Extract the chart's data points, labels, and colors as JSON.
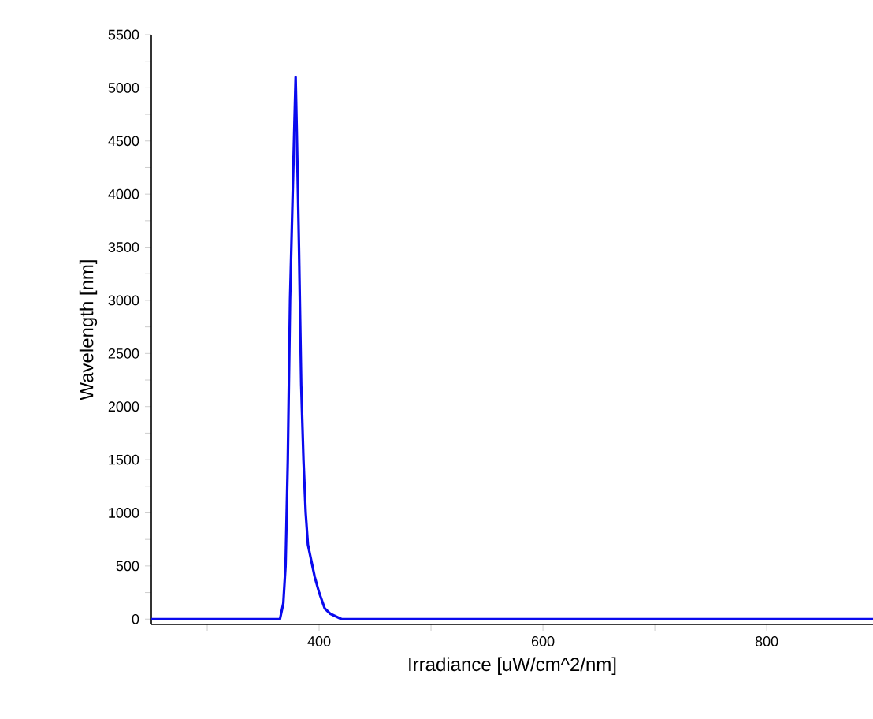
{
  "chart_data": {
    "type": "line",
    "xlabel": "Irradiance [uW/cm^2/nm]",
    "ylabel": "Wavelength [nm]",
    "x": [
      250,
      300,
      360,
      365,
      368,
      370,
      372,
      374,
      376,
      378,
      379,
      380,
      382,
      384,
      386,
      388,
      390,
      393,
      396,
      400,
      405,
      410,
      420,
      440,
      500,
      560,
      600,
      700,
      800,
      850,
      870,
      880,
      895
    ],
    "series": [
      {
        "color": "#0a0aee",
        "values": [
          0,
          0,
          0,
          0,
          150,
          500,
          1500,
          3000,
          3850,
          4700,
          5100,
          4600,
          3500,
          2200,
          1500,
          1000,
          700,
          550,
          400,
          250,
          100,
          50,
          0,
          0,
          0,
          0,
          0,
          0,
          0,
          0,
          0,
          0,
          0
        ]
      }
    ],
    "xlim": [
      250,
      895
    ],
    "ylim": [
      -50,
      5500
    ],
    "xticks": [
      {
        "value": 300,
        "label": null
      },
      400,
      {
        "value": 500,
        "label": null
      },
      600,
      {
        "value": 700,
        "label": null
      },
      800
    ],
    "yticks": [
      0,
      {
        "value": 250,
        "label": null
      },
      500,
      {
        "value": 750,
        "label": null
      },
      1000,
      {
        "value": 1250,
        "label": null
      },
      1500,
      {
        "value": 1750,
        "label": null
      },
      2000,
      {
        "value": 2250,
        "label": null
      },
      2500,
      {
        "value": 2750,
        "label": null
      },
      3000,
      {
        "value": 3250,
        "label": null
      },
      3500,
      {
        "value": 3750,
        "label": null
      },
      4000,
      {
        "value": 4250,
        "label": null
      },
      4500,
      {
        "value": 4750,
        "label": null
      },
      5000,
      {
        "value": 5250,
        "label": null
      },
      5500
    ],
    "marker": "none",
    "line_style": "solid"
  }
}
